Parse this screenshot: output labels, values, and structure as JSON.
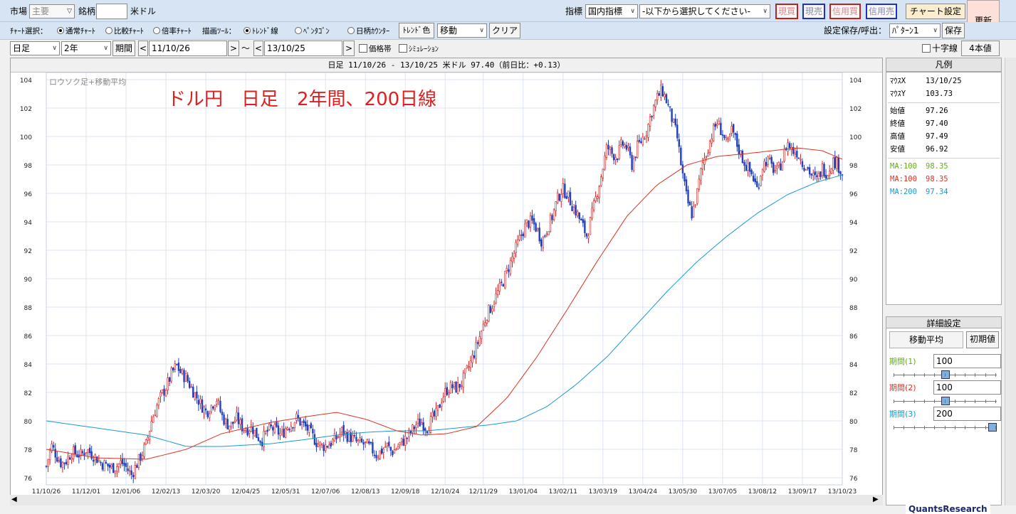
{
  "toolbar1": {
    "market_label": "市場",
    "market_value": "主要",
    "symbol_label": "銘柄",
    "symbol_value": "",
    "symbol_name": "米ドル",
    "indicator_label": "指標",
    "indicator_value": "国内指標",
    "indicator_select": "-以下から選択してください-",
    "btn_genkai": "現買",
    "btn_genbai": "現売",
    "btn_shinyoukai": "信用買",
    "btn_shinyoubai": "信用売",
    "chart_settings": "チャート設定",
    "refresh": "更新"
  },
  "toolbar2": {
    "chart_select_label": "ﾁｬｰﾄ選択：",
    "radio_normal": "通常ﾁｬｰﾄ",
    "radio_compare": "比較ﾁｬｰﾄ",
    "radio_ratio": "倍率ﾁｬｰﾄ",
    "draw_tool_label": "描画ﾂｰﾙ：",
    "radio_trend": "ﾄﾚﾝﾄﾞ線",
    "radio_pentagon": "ﾍﾟﾝﾀｺﾞﾝ",
    "radio_daycount": "日柄ｶｳﾝﾀｰ",
    "trend_color": "ﾄﾚﾝﾄﾞ色",
    "mode_value": "移動",
    "clear": "クリア",
    "save_label": "設定保存/呼出：",
    "pattern_value": "ﾊﾟﾀｰﾝ1",
    "save_btn": "保存"
  },
  "toolbar3": {
    "period_type": "日足",
    "period_len": "2年",
    "period_btn": "期間",
    "prev": "<",
    "next": ">",
    "tilde": "〜",
    "from_date": "11/10/26",
    "to_date": "13/10/25",
    "price_band": "価格帯",
    "simulation": "ｼﾐｭﾚｰｼｮﾝ",
    "crosshair": "十字線",
    "four_values": "4本値"
  },
  "chart_header": "日足 11/10/26 - 13/10/25  米ドル  97.40（前日比：+0.13）",
  "chart_inner_label": "ロウソク足+移動平均",
  "annotation": "ドル円　日足　2年間、200日線",
  "legend": {
    "title": "凡例",
    "mouse_x_label": "ﾏｳｽX",
    "mouse_x": "13/10/25",
    "mouse_y_label": "ﾏｳｽY",
    "mouse_y": "103.73",
    "open_label": "始値",
    "open": "97.26",
    "close_label": "終値",
    "close": "97.40",
    "high_label": "高値",
    "high": "97.49",
    "low_label": "安値",
    "low": "96.92",
    "ma1_label": "MA:100",
    "ma1": "98.35",
    "ma2_label": "MA:100",
    "ma2": "98.35",
    "ma3_label": "MA:200",
    "ma3": "97.34"
  },
  "detail": {
    "title": "詳細設定",
    "tab": "移動平均",
    "reset": "初期値",
    "p1_label": "期間(1)",
    "p1": "100",
    "p2_label": "期間(2)",
    "p2": "100",
    "p3_label": "期間(3)",
    "p3": "200",
    "slider1_fraction": 0.5,
    "slider2_fraction": 0.5,
    "slider3_fraction": 1.0
  },
  "footer_text": "QuantsResearch",
  "colors": {
    "ma1": "#66aa22",
    "ma2": "#dd3322",
    "ma3": "#1a9ad0",
    "annotation": "#e02020",
    "candle_up": "#d02020",
    "candle_down": "#2040c0"
  },
  "chart_data": {
    "type": "candlestick",
    "ylim": [
      75.5,
      104.5
    ],
    "y_ticks": [
      "76",
      "78",
      "80",
      "82",
      "84",
      "86",
      "88",
      "90",
      "92",
      "94",
      "96",
      "98",
      "100",
      "102",
      "104"
    ],
    "x_ticks": [
      "11/10/26",
      "11/12/01",
      "12/01/06",
      "12/02/13",
      "12/03/20",
      "12/04/25",
      "12/05/31",
      "12/07/06",
      "12/08/13",
      "12/09/18",
      "12/10/24",
      "12/11/29",
      "13/01/04",
      "13/02/11",
      "13/03/19",
      "13/04/24",
      "13/05/30",
      "13/07/05",
      "13/08/12",
      "13/09/17",
      "13/10/23"
    ],
    "price_path": [
      [
        0,
        76.8
      ],
      [
        1,
        78.3
      ],
      [
        2,
        77.6
      ],
      [
        3,
        77.0
      ],
      [
        4,
        77.2
      ],
      [
        5,
        77.8
      ],
      [
        6,
        77.7
      ],
      [
        7,
        77.6
      ],
      [
        8,
        78.0
      ],
      [
        9,
        77.7
      ],
      [
        10,
        77.4
      ],
      [
        11,
        77.0
      ],
      [
        12,
        76.9
      ],
      [
        13,
        76.7
      ],
      [
        14,
        76.8
      ],
      [
        15,
        77.1
      ],
      [
        16,
        76.7
      ],
      [
        17,
        76.2
      ],
      [
        18,
        76.9
      ],
      [
        19,
        77.6
      ],
      [
        20,
        78.4
      ],
      [
        21,
        80.0
      ],
      [
        22,
        81.0
      ],
      [
        23,
        81.8
      ],
      [
        24,
        82.4
      ],
      [
        25,
        83.3
      ],
      [
        26,
        83.9
      ],
      [
        27,
        83.3
      ],
      [
        28,
        83.0
      ],
      [
        29,
        82.3
      ],
      [
        30,
        81.7
      ],
      [
        31,
        81.1
      ],
      [
        32,
        80.6
      ],
      [
        33,
        81.1
      ],
      [
        34,
        81.6
      ],
      [
        35,
        80.4
      ],
      [
        36,
        79.8
      ],
      [
        37,
        79.7
      ],
      [
        38,
        80.2
      ],
      [
        39,
        79.6
      ],
      [
        40,
        79.4
      ],
      [
        41,
        79.6
      ],
      [
        42,
        79.0
      ],
      [
        43,
        78.6
      ],
      [
        44,
        79.2
      ],
      [
        45,
        79.5
      ],
      [
        46,
        79.3
      ],
      [
        47,
        79.0
      ],
      [
        48,
        79.6
      ],
      [
        49,
        79.8
      ],
      [
        50,
        80.2
      ],
      [
        51,
        79.8
      ],
      [
        52,
        79.5
      ],
      [
        53,
        79.0
      ],
      [
        54,
        78.5
      ],
      [
        55,
        78.2
      ],
      [
        56,
        78.3
      ],
      [
        57,
        78.5
      ],
      [
        58,
        78.8
      ],
      [
        59,
        79.3
      ],
      [
        60,
        79.0
      ],
      [
        61,
        78.8
      ],
      [
        62,
        78.5
      ],
      [
        63,
        78.4
      ],
      [
        64,
        78.3
      ],
      [
        65,
        78.0
      ],
      [
        66,
        77.6
      ],
      [
        67,
        77.9
      ],
      [
        68,
        78.3
      ],
      [
        69,
        77.8
      ],
      [
        70,
        78.1
      ],
      [
        71,
        78.5
      ],
      [
        72,
        78.8
      ],
      [
        73,
        79.3
      ],
      [
        74,
        79.8
      ],
      [
        75,
        79.9
      ],
      [
        76,
        79.5
      ],
      [
        77,
        80.1
      ],
      [
        78,
        80.5
      ],
      [
        79,
        81.6
      ],
      [
        80,
        82.2
      ],
      [
        81,
        82.4
      ],
      [
        82,
        82.3
      ],
      [
        83,
        82.7
      ],
      [
        84,
        83.5
      ],
      [
        85,
        84.3
      ],
      [
        86,
        85.3
      ],
      [
        87,
        86.4
      ],
      [
        88,
        87.5
      ],
      [
        89,
        88.1
      ],
      [
        90,
        88.9
      ],
      [
        91,
        89.6
      ],
      [
        92,
        90.5
      ],
      [
        93,
        91.4
      ],
      [
        94,
        92.3
      ],
      [
        95,
        93.2
      ],
      [
        96,
        93.9
      ],
      [
        97,
        94.0
      ],
      [
        98,
        93.5
      ],
      [
        99,
        92.6
      ],
      [
        100,
        93.5
      ],
      [
        101,
        94.3
      ],
      [
        102,
        95.5
      ],
      [
        103,
        96.3
      ],
      [
        104,
        96.0
      ],
      [
        105,
        95.2
      ],
      [
        106,
        94.6
      ],
      [
        107,
        93.8
      ],
      [
        108,
        93.0
      ],
      [
        109,
        94.5
      ],
      [
        110,
        96.0
      ],
      [
        111,
        97.5
      ],
      [
        112,
        99.3
      ],
      [
        113,
        98.8
      ],
      [
        114,
        98.6
      ],
      [
        115,
        99.5
      ],
      [
        116,
        99.2
      ],
      [
        117,
        98.0
      ],
      [
        118,
        99.2
      ],
      [
        119,
        99.8
      ],
      [
        120,
        100.5
      ],
      [
        121,
        101.8
      ],
      [
        122,
        102.7
      ],
      [
        123,
        103.3
      ],
      [
        124,
        102.4
      ],
      [
        125,
        101.2
      ],
      [
        126,
        100.0
      ],
      [
        127,
        97.5
      ],
      [
        128,
        95.5
      ],
      [
        129,
        94.5
      ],
      [
        130,
        96.0
      ],
      [
        131,
        98.0
      ],
      [
        132,
        99.0
      ],
      [
        133,
        100.2
      ],
      [
        134,
        101.0
      ],
      [
        135,
        100.3
      ],
      [
        136,
        99.3
      ],
      [
        137,
        100.5
      ],
      [
        138,
        99.4
      ],
      [
        139,
        98.5
      ],
      [
        140,
        97.8
      ],
      [
        141,
        97.3
      ],
      [
        142,
        96.3
      ],
      [
        143,
        97.9
      ],
      [
        144,
        98.4
      ],
      [
        145,
        97.8
      ],
      [
        146,
        97.5
      ],
      [
        147,
        98.3
      ],
      [
        148,
        99.6
      ],
      [
        149,
        99.0
      ],
      [
        150,
        98.9
      ],
      [
        151,
        98.2
      ],
      [
        152,
        97.8
      ],
      [
        153,
        97.2
      ],
      [
        154,
        96.9
      ],
      [
        155,
        97.8
      ],
      [
        156,
        97.4
      ],
      [
        157,
        98.3
      ],
      [
        158,
        98.1
      ],
      [
        159,
        97.4
      ]
    ],
    "ma_red": [
      [
        0,
        78.0
      ],
      [
        10,
        77.4
      ],
      [
        20,
        77.3
      ],
      [
        28,
        78.0
      ],
      [
        35,
        79.1
      ],
      [
        45,
        79.9
      ],
      [
        52,
        80.3
      ],
      [
        58,
        80.6
      ],
      [
        64,
        80.1
      ],
      [
        70,
        79.3
      ],
      [
        75,
        79.0
      ],
      [
        80,
        79.1
      ],
      [
        86,
        79.6
      ],
      [
        92,
        81.6
      ],
      [
        98,
        84.5
      ],
      [
        104,
        87.8
      ],
      [
        110,
        91.2
      ],
      [
        116,
        94.4
      ],
      [
        122,
        96.6
      ],
      [
        128,
        98.0
      ],
      [
        134,
        98.6
      ],
      [
        140,
        98.8
      ],
      [
        145,
        99.0
      ],
      [
        150,
        99.2
      ],
      [
        155,
        99.0
      ],
      [
        159,
        98.4
      ]
    ],
    "ma_blue": [
      [
        0,
        80.0
      ],
      [
        10,
        79.5
      ],
      [
        20,
        79.0
      ],
      [
        28,
        78.2
      ],
      [
        35,
        78.2
      ],
      [
        45,
        78.4
      ],
      [
        52,
        78.7
      ],
      [
        58,
        79.0
      ],
      [
        64,
        79.2
      ],
      [
        70,
        79.3
      ],
      [
        76,
        79.3
      ],
      [
        82,
        79.5
      ],
      [
        88,
        79.7
      ],
      [
        94,
        80.0
      ],
      [
        100,
        81.0
      ],
      [
        106,
        82.6
      ],
      [
        112,
        84.5
      ],
      [
        118,
        86.8
      ],
      [
        124,
        89.1
      ],
      [
        130,
        91.2
      ],
      [
        136,
        93.0
      ],
      [
        142,
        94.6
      ],
      [
        148,
        95.9
      ],
      [
        154,
        96.8
      ],
      [
        159,
        97.3
      ]
    ]
  }
}
